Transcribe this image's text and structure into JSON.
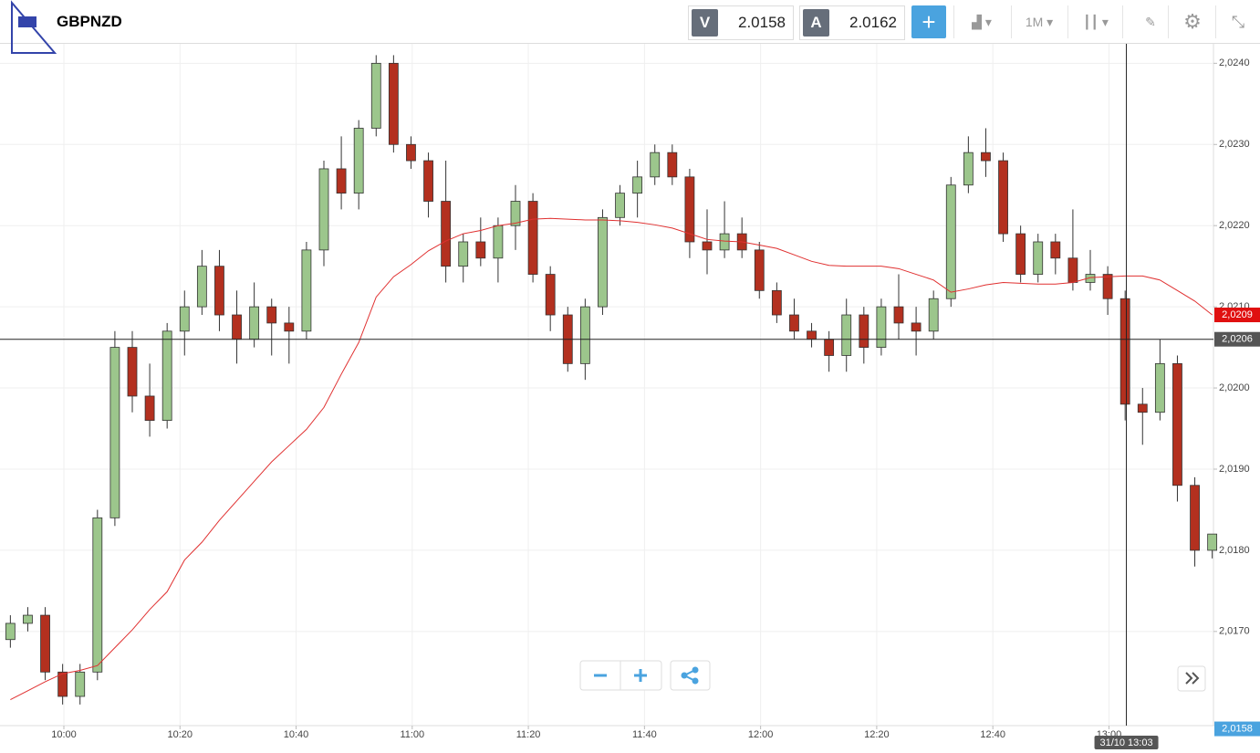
{
  "toolbar": {
    "symbol": "GBPNZD",
    "bid_label": "V",
    "bid": "2.0158",
    "ask_label": "A",
    "ask": "2.0162",
    "timeframe": "1M"
  },
  "chart_data": {
    "type": "candlestick",
    "x": [
      "09:50",
      "09:53",
      "09:56",
      "09:59",
      "10:02",
      "10:05",
      "10:08",
      "10:11",
      "10:14",
      "10:17",
      "10:20",
      "10:23",
      "10:26",
      "10:29",
      "10:32",
      "10:35",
      "10:38",
      "10:41",
      "10:44",
      "10:47",
      "10:50",
      "10:53",
      "10:56",
      "10:59",
      "11:02",
      "11:05",
      "11:08",
      "11:11",
      "11:14",
      "11:17",
      "11:20",
      "11:23",
      "11:26",
      "11:29",
      "11:32",
      "11:35",
      "11:38",
      "11:41",
      "11:44",
      "11:47",
      "11:50",
      "11:53",
      "11:56",
      "11:59",
      "12:02",
      "12:05",
      "12:08",
      "12:11",
      "12:14",
      "12:17",
      "12:20",
      "12:23",
      "12:26",
      "12:29",
      "12:32",
      "12:35",
      "12:38",
      "12:41",
      "12:44",
      "12:47",
      "12:50",
      "12:53",
      "12:56",
      "12:59",
      "13:02",
      "13:05",
      "13:08",
      "13:11",
      "13:14",
      "13:17"
    ],
    "open": [
      2.0169,
      2.0171,
      2.0172,
      2.0165,
      2.0162,
      2.0165,
      2.0184,
      2.0205,
      2.0199,
      2.0196,
      2.0207,
      2.021,
      2.0215,
      2.0209,
      2.0206,
      2.021,
      2.0208,
      2.0207,
      2.0217,
      2.0227,
      2.0224,
      2.0232,
      2.024,
      2.023,
      2.0228,
      2.0223,
      2.0215,
      2.0218,
      2.0216,
      2.022,
      2.0223,
      2.0214,
      2.0209,
      2.0203,
      2.021,
      2.0221,
      2.0224,
      2.0226,
      2.0229,
      2.0226,
      2.0218,
      2.0217,
      2.0219,
      2.0217,
      2.0212,
      2.0209,
      2.0207,
      2.0206,
      2.0204,
      2.0209,
      2.0205,
      2.021,
      2.0208,
      2.0207,
      2.0211,
      2.0225,
      2.0229,
      2.0228,
      2.0219,
      2.0214,
      2.0218,
      2.0216,
      2.0213,
      2.0214,
      2.0211,
      2.0198,
      2.0197,
      2.0203,
      2.0188,
      2.018
    ],
    "high": [
      2.0172,
      2.0173,
      2.0173,
      2.0166,
      2.0166,
      2.0185,
      2.0207,
      2.0207,
      2.0203,
      2.0208,
      2.0212,
      2.0217,
      2.0217,
      2.0212,
      2.0213,
      2.0211,
      2.021,
      2.0218,
      2.0228,
      2.0231,
      2.0233,
      2.0241,
      2.0241,
      2.0231,
      2.0229,
      2.0228,
      2.0219,
      2.0221,
      2.0221,
      2.0225,
      2.0224,
      2.0215,
      2.021,
      2.0211,
      2.0222,
      2.0225,
      2.0228,
      2.023,
      2.023,
      2.0227,
      2.0222,
      2.0223,
      2.0221,
      2.0218,
      2.0213,
      2.0211,
      2.0208,
      2.0207,
      2.0211,
      2.021,
      2.0211,
      2.0214,
      2.021,
      2.0212,
      2.0226,
      2.0231,
      2.0232,
      2.0229,
      2.022,
      2.0219,
      2.0219,
      2.0222,
      2.0217,
      2.0215,
      2.0212,
      2.02,
      2.0206,
      2.0204,
      2.0189,
      2.0182
    ],
    "low": [
      2.0168,
      2.017,
      2.0164,
      2.0161,
      2.0161,
      2.0164,
      2.0183,
      2.0197,
      2.0194,
      2.0195,
      2.0204,
      2.0209,
      2.0207,
      2.0203,
      2.0205,
      2.0204,
      2.0203,
      2.0206,
      2.0215,
      2.0222,
      2.0222,
      2.0231,
      2.0229,
      2.0227,
      2.0221,
      2.0213,
      2.0213,
      2.0215,
      2.0213,
      2.0217,
      2.0213,
      2.0207,
      2.0202,
      2.0201,
      2.0209,
      2.022,
      2.0221,
      2.0225,
      2.0225,
      2.0216,
      2.0214,
      2.0216,
      2.0216,
      2.0211,
      2.0208,
      2.0206,
      2.0205,
      2.0202,
      2.0202,
      2.0203,
      2.0204,
      2.0206,
      2.0204,
      2.0206,
      2.021,
      2.0224,
      2.0226,
      2.0218,
      2.0213,
      2.0213,
      2.0214,
      2.0212,
      2.0212,
      2.0209,
      2.0196,
      2.0193,
      2.0196,
      2.0186,
      2.0178,
      2.0179
    ],
    "close": [
      2.0171,
      2.0172,
      2.0165,
      2.0162,
      2.0165,
      2.0184,
      2.0205,
      2.0199,
      2.0196,
      2.0207,
      2.021,
      2.0215,
      2.0209,
      2.0206,
      2.021,
      2.0208,
      2.0207,
      2.0217,
      2.0227,
      2.0224,
      2.0232,
      2.024,
      2.023,
      2.0228,
      2.0223,
      2.0215,
      2.0218,
      2.0216,
      2.022,
      2.0223,
      2.0214,
      2.0209,
      2.0203,
      2.021,
      2.0221,
      2.0224,
      2.0226,
      2.0229,
      2.0226,
      2.0218,
      2.0217,
      2.0219,
      2.0217,
      2.0212,
      2.0209,
      2.0207,
      2.0206,
      2.0204,
      2.0209,
      2.0205,
      2.021,
      2.0208,
      2.0207,
      2.0211,
      2.0225,
      2.0229,
      2.0228,
      2.0219,
      2.0214,
      2.0218,
      2.0216,
      2.0213,
      2.0214,
      2.0211,
      2.0198,
      2.0197,
      2.0203,
      2.0188,
      2.018,
      2.0182
    ],
    "up_color": "#9cc68c",
    "down_color": "#b3301f",
    "ma": {
      "color": "#e03030",
      "values": [
        2.01616,
        2.01627,
        2.01638,
        2.01648,
        2.01652,
        2.01658,
        2.0168,
        2.01702,
        2.01727,
        2.01749,
        2.01788,
        2.0181,
        2.01837,
        2.01861,
        2.01885,
        2.01909,
        2.01929,
        2.01949,
        2.01976,
        2.02017,
        2.02056,
        2.02112,
        2.02137,
        2.02152,
        2.02169,
        2.02181,
        2.0219,
        2.02194,
        2.022,
        2.02203,
        2.02208,
        2.02209,
        2.02208,
        2.02207,
        2.02207,
        2.02206,
        2.02204,
        2.02201,
        2.02197,
        2.0219,
        2.02183,
        2.02181,
        2.0218,
        2.02176,
        2.02172,
        2.02164,
        2.02156,
        2.02151,
        2.0215,
        2.0215,
        2.0215,
        2.02147,
        2.0214,
        2.02133,
        2.02118,
        2.02122,
        2.02127,
        2.0213,
        2.02129,
        2.02128,
        2.02128,
        2.0213,
        2.02136,
        2.02137,
        2.02138,
        2.02138,
        2.02133,
        2.0212,
        2.02107,
        2.0209
      ]
    },
    "ylim": [
      2.01584,
      2.02424
    ],
    "yticks": [
      {
        "value": 2.017,
        "label": "2,0170"
      },
      {
        "value": 2.018,
        "label": "2,0180"
      },
      {
        "value": 2.019,
        "label": "2,0190"
      },
      {
        "value": 2.02,
        "label": "2,0200"
      },
      {
        "value": 2.021,
        "label": "2,0210"
      },
      {
        "value": 2.022,
        "label": "2,0220"
      },
      {
        "value": 2.023,
        "label": "2,0230"
      },
      {
        "value": 2.024,
        "label": "2,0240"
      }
    ],
    "xlim": [
      "09:49",
      "13:18"
    ],
    "xticks": [
      "10:00",
      "10:20",
      "10:40",
      "11:00",
      "11:20",
      "11:40",
      "12:00",
      "12:20",
      "12:40",
      "13:00"
    ],
    "grid": true,
    "crosshair": {
      "time": "31/10 13:03",
      "price": {
        "value": 2.0206,
        "label": "2,0206"
      }
    },
    "badges": [
      {
        "value": 2.0209,
        "label": "2,0209",
        "color": "#e01010"
      },
      {
        "value": 2.0158,
        "label": "2,0158",
        "color": "#4aa3df"
      }
    ]
  }
}
